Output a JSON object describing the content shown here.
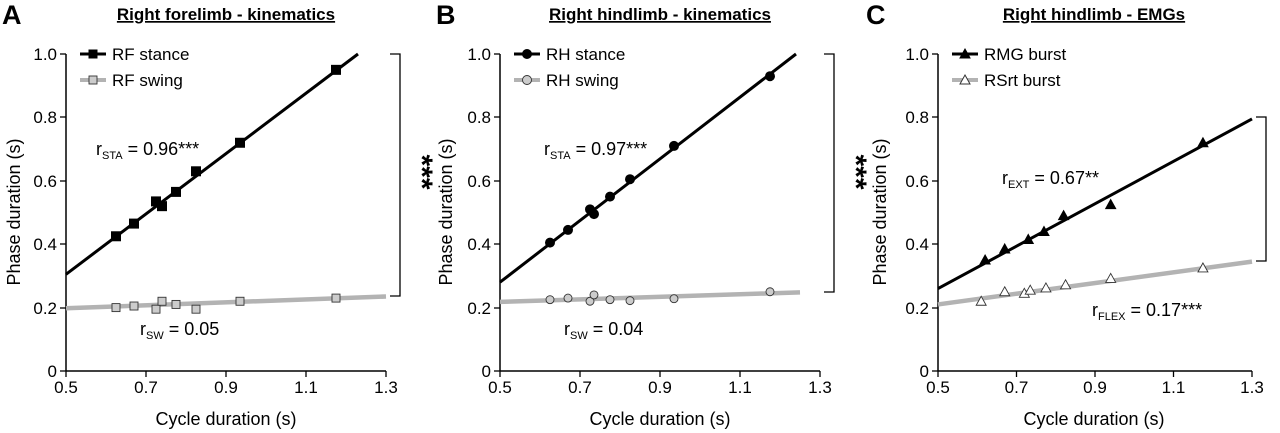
{
  "chart_data": [
    {
      "type": "scatter",
      "panel_label": "A",
      "title": "Right forelimb - kinematics",
      "xlabel": "Cycle duration (s)",
      "ylabel": "Phase duration (s)",
      "xlim": [
        0.5,
        1.3
      ],
      "ylim": [
        0,
        1.0
      ],
      "xticks": [
        "0.5",
        "0.7",
        "0.9",
        "1.1",
        "1.3"
      ],
      "yticks": [
        "0",
        "0.2",
        "0.4",
        "0.6",
        "0.8",
        "1.0"
      ],
      "grid": false,
      "legend_position": "top-left",
      "series": [
        {
          "name": "RF stance",
          "color": "#000000",
          "marker": "square",
          "marker_fill": "#000000",
          "points": [
            {
              "x": 0.625,
              "y": 0.425
            },
            {
              "x": 0.67,
              "y": 0.465
            },
            {
              "x": 0.725,
              "y": 0.535
            },
            {
              "x": 0.74,
              "y": 0.52
            },
            {
              "x": 0.775,
              "y": 0.565
            },
            {
              "x": 0.825,
              "y": 0.63
            },
            {
              "x": 0.935,
              "y": 0.72
            },
            {
              "x": 1.175,
              "y": 0.95
            }
          ],
          "fit": [
            {
              "x": 0.5,
              "y": 0.305
            },
            {
              "x": 1.23,
              "y": 1.0
            }
          ]
        },
        {
          "name": "RF swing",
          "color": "#b3b3b3",
          "marker": "square",
          "marker_fill": "#cccccc",
          "points": [
            {
              "x": 0.625,
              "y": 0.2
            },
            {
              "x": 0.67,
              "y": 0.205
            },
            {
              "x": 0.725,
              "y": 0.195
            },
            {
              "x": 0.74,
              "y": 0.22
            },
            {
              "x": 0.775,
              "y": 0.21
            },
            {
              "x": 0.825,
              "y": 0.195
            },
            {
              "x": 0.935,
              "y": 0.22
            },
            {
              "x": 1.175,
              "y": 0.23
            }
          ],
          "fit": [
            {
              "x": 0.5,
              "y": 0.198
            },
            {
              "x": 1.3,
              "y": 0.235
            }
          ]
        }
      ],
      "annotations": [
        {
          "main": "r",
          "sub": "STA",
          "rest": " = 0.96***"
        },
        {
          "main": "r",
          "sub": "SW",
          "rest": " = 0.05"
        }
      ],
      "significance": "***",
      "bracket_y": [
        1.0,
        0.235
      ]
    },
    {
      "type": "scatter",
      "panel_label": "B",
      "title": "Right hindlimb - kinematics",
      "xlabel": "Cycle duration (s)",
      "ylabel": "Phase duration (s)",
      "xlim": [
        0.5,
        1.3
      ],
      "ylim": [
        0,
        1.0
      ],
      "xticks": [
        "0.5",
        "0.7",
        "0.9",
        "1.1",
        "1.3"
      ],
      "yticks": [
        "0",
        "0.2",
        "0.4",
        "0.6",
        "0.8",
        "1.0"
      ],
      "grid": false,
      "legend_position": "top-left",
      "series": [
        {
          "name": "RH stance",
          "color": "#000000",
          "marker": "circle",
          "marker_fill": "#000000",
          "points": [
            {
              "x": 0.625,
              "y": 0.405
            },
            {
              "x": 0.67,
              "y": 0.445
            },
            {
              "x": 0.725,
              "y": 0.51
            },
            {
              "x": 0.735,
              "y": 0.495
            },
            {
              "x": 0.775,
              "y": 0.55
            },
            {
              "x": 0.825,
              "y": 0.605
            },
            {
              "x": 0.935,
              "y": 0.71
            },
            {
              "x": 1.175,
              "y": 0.93
            }
          ],
          "fit": [
            {
              "x": 0.5,
              "y": 0.28
            },
            {
              "x": 1.24,
              "y": 1.0
            }
          ]
        },
        {
          "name": "RH swing",
          "color": "#b3b3b3",
          "marker": "circle",
          "marker_fill": "#cccccc",
          "points": [
            {
              "x": 0.625,
              "y": 0.225
            },
            {
              "x": 0.67,
              "y": 0.23
            },
            {
              "x": 0.725,
              "y": 0.22
            },
            {
              "x": 0.735,
              "y": 0.24
            },
            {
              "x": 0.775,
              "y": 0.225
            },
            {
              "x": 0.825,
              "y": 0.222
            },
            {
              "x": 0.935,
              "y": 0.228
            },
            {
              "x": 1.175,
              "y": 0.25
            }
          ],
          "fit": [
            {
              "x": 0.5,
              "y": 0.218
            },
            {
              "x": 1.25,
              "y": 0.248
            }
          ]
        }
      ],
      "annotations": [
        {
          "main": "r",
          "sub": "STA",
          "rest": " = 0.97***"
        },
        {
          "main": "r",
          "sub": "SW",
          "rest": " = 0.04"
        }
      ],
      "significance": "***",
      "bracket_y": [
        1.0,
        0.248
      ]
    },
    {
      "type": "scatter",
      "panel_label": "C",
      "title": "Right hindlimb - EMGs",
      "xlabel": "Cycle duration (s)",
      "ylabel": "Phase duration (s)",
      "xlim": [
        0.5,
        1.3
      ],
      "ylim": [
        0,
        1.0
      ],
      "xticks": [
        "0.5",
        "0.7",
        "0.9",
        "1.1",
        "1.3"
      ],
      "yticks": [
        "0",
        "0.2",
        "0.4",
        "0.6",
        "0.8",
        "1.0"
      ],
      "grid": false,
      "legend_position": "top-left",
      "series": [
        {
          "name": "RMG burst",
          "color": "#000000",
          "marker": "triangle",
          "marker_fill": "#000000",
          "points": [
            {
              "x": 0.62,
              "y": 0.35
            },
            {
              "x": 0.67,
              "y": 0.385
            },
            {
              "x": 0.73,
              "y": 0.415
            },
            {
              "x": 0.77,
              "y": 0.44
            },
            {
              "x": 0.82,
              "y": 0.49
            },
            {
              "x": 0.94,
              "y": 0.525
            },
            {
              "x": 1.175,
              "y": 0.72
            }
          ],
          "fit": [
            {
              "x": 0.5,
              "y": 0.26
            },
            {
              "x": 1.3,
              "y": 0.795
            }
          ]
        },
        {
          "name": "RSrt burst",
          "color": "#b3b3b3",
          "marker": "triangle",
          "marker_fill": "#ffffff",
          "points": [
            {
              "x": 0.61,
              "y": 0.22
            },
            {
              "x": 0.67,
              "y": 0.25
            },
            {
              "x": 0.72,
              "y": 0.245
            },
            {
              "x": 0.735,
              "y": 0.255
            },
            {
              "x": 0.775,
              "y": 0.262
            },
            {
              "x": 0.825,
              "y": 0.272
            },
            {
              "x": 0.94,
              "y": 0.292
            },
            {
              "x": 1.175,
              "y": 0.325
            }
          ],
          "fit": [
            {
              "x": 0.5,
              "y": 0.21
            },
            {
              "x": 1.3,
              "y": 0.345
            }
          ]
        }
      ],
      "annotations": [
        {
          "main": "r",
          "sub": "EXT",
          "rest": " = 0.67**"
        },
        {
          "main": "r",
          "sub": "FLEX",
          "rest": " = 0.17***"
        }
      ],
      "significance": "**",
      "bracket_y": [
        0.795,
        0.345
      ]
    }
  ]
}
